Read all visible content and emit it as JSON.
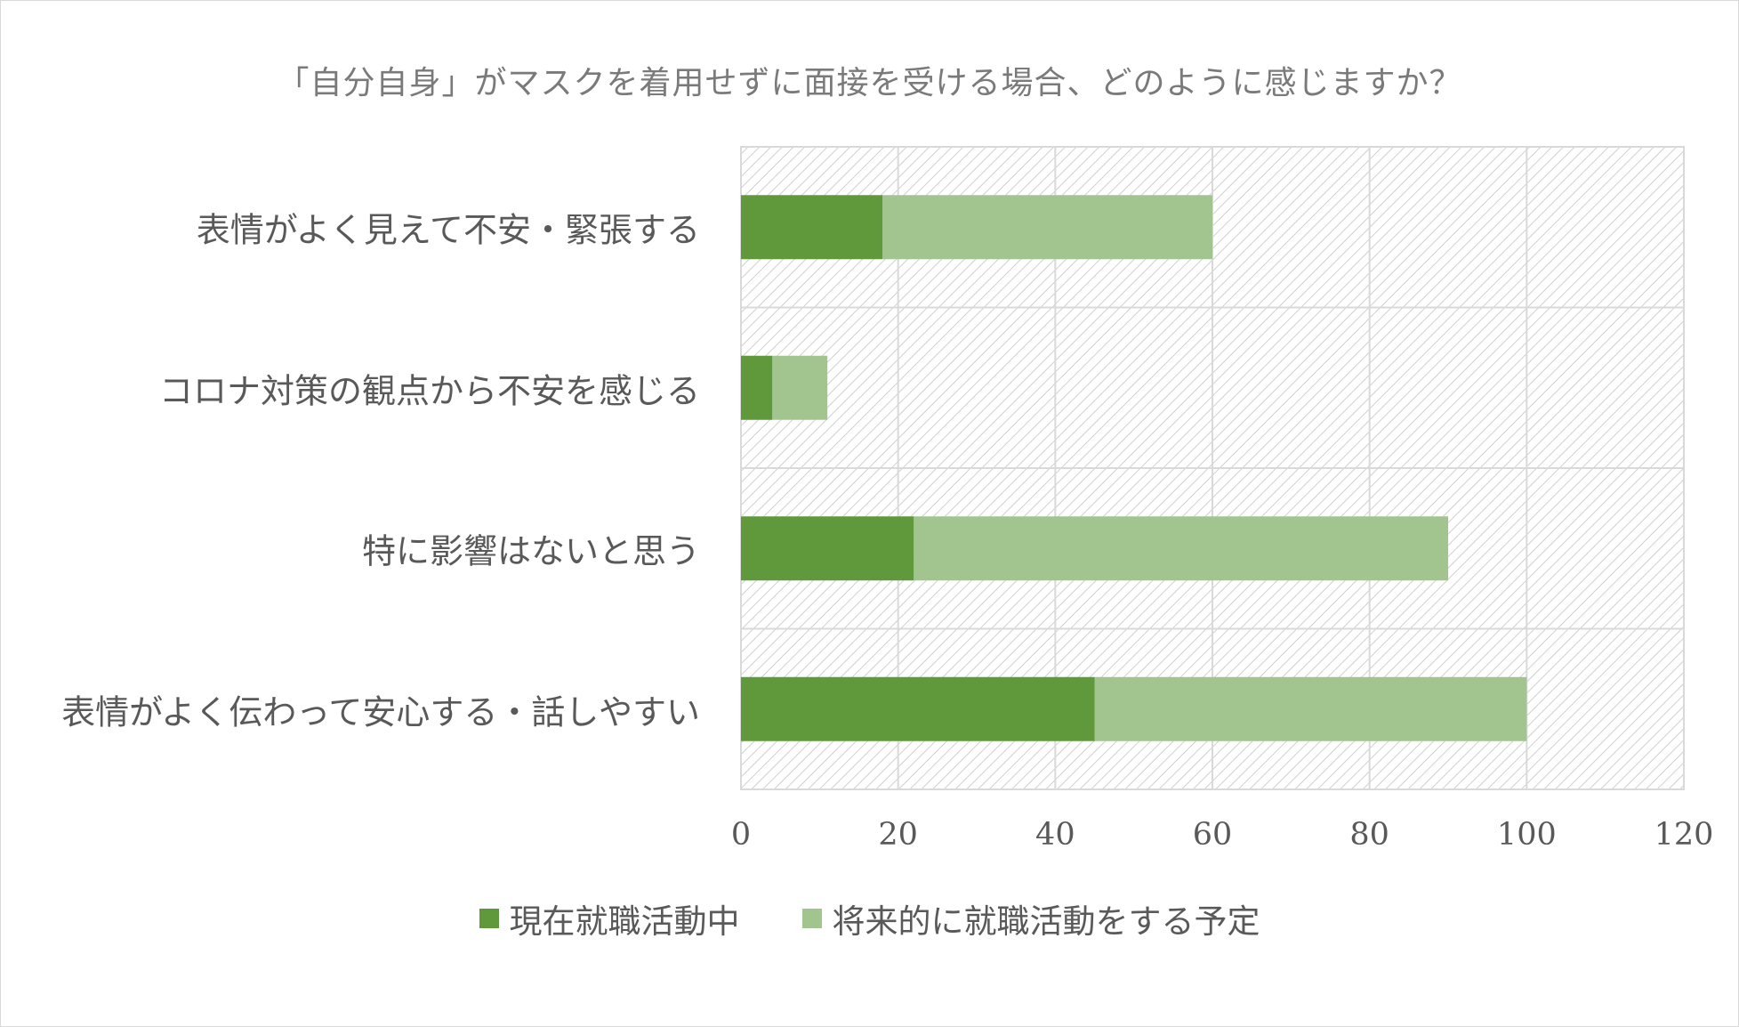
{
  "chart_data": {
    "type": "bar",
    "orientation": "horizontal",
    "stacked": true,
    "title": "「自分自身」がマスクを着用せずに面接を受ける場合、どのように感じますか？",
    "categories": [
      "表情がよく見えて不安・緊張する",
      "コロナ対策の観点から不安を感じる",
      "特に影響はないと思う",
      "表情がよく伝わって安心する・話しやすい"
    ],
    "series": [
      {
        "name": "現在就職活動中",
        "color": "#5f993c",
        "values": [
          18,
          4,
          22,
          45
        ]
      },
      {
        "name": "将来的に就職活動をする予定",
        "color": "#a2c590",
        "values": [
          42,
          7,
          68,
          55
        ]
      }
    ],
    "xlim": [
      0,
      120
    ],
    "xticks": [
      0,
      20,
      40,
      60,
      80,
      100,
      120
    ],
    "grid": true,
    "plot_background": "hatched light gray",
    "legend_position": "bottom"
  }
}
